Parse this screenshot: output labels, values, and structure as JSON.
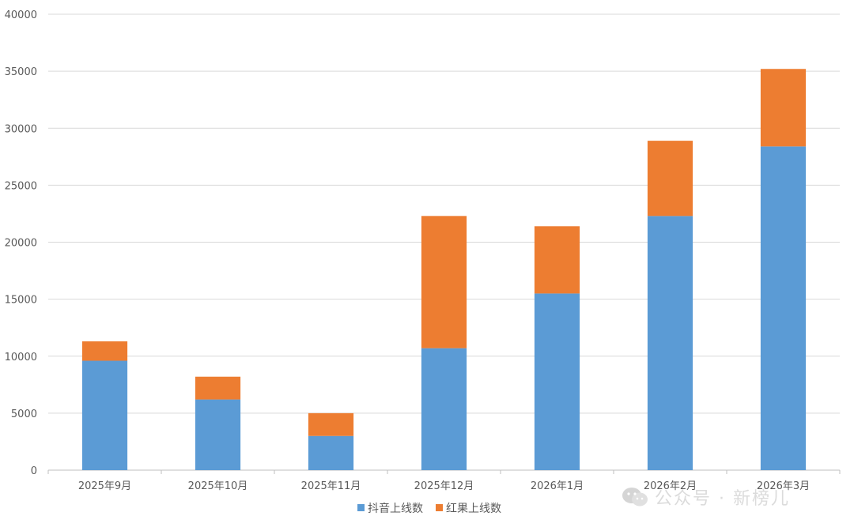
{
  "chart_data": {
    "type": "bar",
    "stacked": true,
    "categories": [
      "2025年9月",
      "2025年10月",
      "2025年11月",
      "2025年12月",
      "2026年1月",
      "2026年2月",
      "2026年3月"
    ],
    "series": [
      {
        "name": "抖音上线数",
        "color": "#5B9BD5",
        "values": [
          9600,
          6200,
          3000,
          10700,
          15500,
          22300,
          28400
        ]
      },
      {
        "name": "红果上线数",
        "color": "#ED7D31",
        "values": [
          1700,
          2000,
          2000,
          11600,
          5900,
          6600,
          6800
        ]
      }
    ],
    "ylim": [
      0,
      40000
    ],
    "yticks": [
      0,
      5000,
      10000,
      15000,
      20000,
      25000,
      30000,
      35000,
      40000
    ],
    "grid": true,
    "legend_position": "bottom"
  },
  "watermark": {
    "text": "公众号 · 新榜儿"
  }
}
